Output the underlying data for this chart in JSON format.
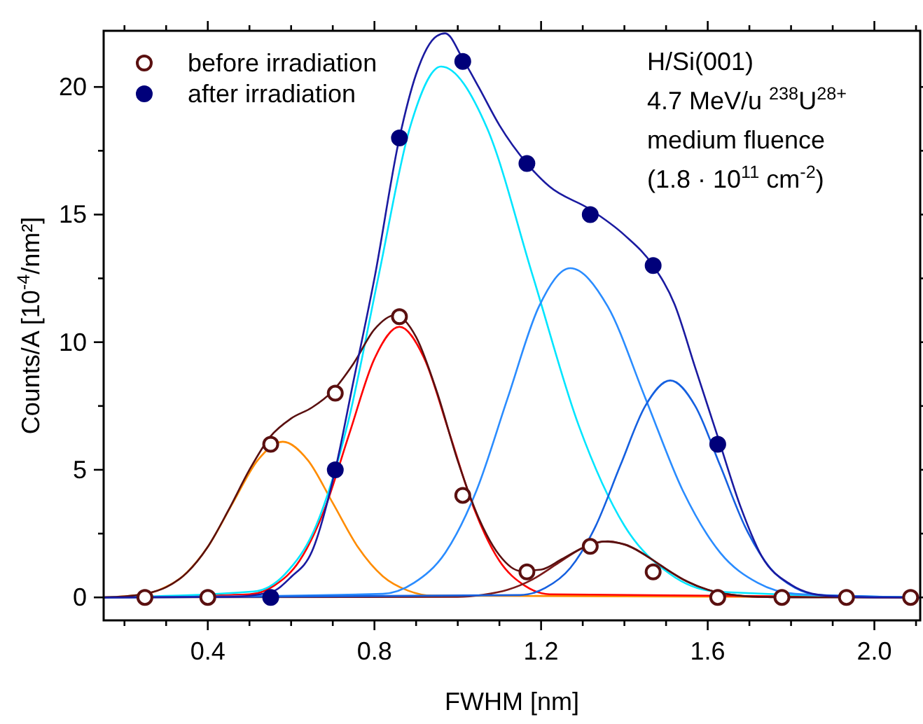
{
  "chart_data": {
    "type": "line",
    "xlabel": "FWHM [nm]",
    "ylabel": "Counts/A [10$^{-4}$/nm²]",
    "xlim": [
      0.15,
      2.11
    ],
    "ylim": [
      -0.9,
      22.2
    ],
    "xticks": [
      {
        "value": 0.2,
        "label": null
      },
      {
        "value": 0.3,
        "label": null
      },
      0.4,
      {
        "value": 0.5,
        "label": null
      },
      {
        "value": 0.6,
        "label": null
      },
      {
        "value": 0.7,
        "label": null
      },
      0.8,
      {
        "value": 0.9,
        "label": null
      },
      {
        "value": 1.0,
        "label": null
      },
      {
        "value": 1.1,
        "label": null
      },
      1.2,
      {
        "value": 1.3,
        "label": null
      },
      {
        "value": 1.4,
        "label": null
      },
      {
        "value": 1.5,
        "label": null
      },
      1.6,
      {
        "value": 1.7,
        "label": null
      },
      {
        "value": 1.8,
        "label": null
      },
      {
        "value": 1.9,
        "label": null
      },
      {
        "value": 2,
        "label": "2.0"
      },
      {
        "value": 2.1,
        "label": null
      }
    ],
    "yticks": [
      0,
      {
        "value": 2.5,
        "label": null
      },
      5,
      {
        "value": 7.5,
        "label": null
      },
      10,
      {
        "value": 12.5,
        "label": null
      },
      15,
      {
        "value": 17.5,
        "label": null
      },
      20
    ],
    "grid": false,
    "legend": "top left",
    "annotations": [
      "H/Si(001)",
      "4.7 MeV/u $^{238}$U$^{28+}$",
      "medium fluence",
      "(1.8 · 10$^{11}$ cm$^{-2}$)"
    ],
    "series": [
      {
        "color": "#ff8c00",
        "x": [
          0.15,
          0.22,
          0.28,
          0.34,
          0.4,
          0.46,
          0.52,
          0.58,
          0.64,
          0.7,
          0.76,
          0.82,
          0.88,
          0.94,
          2.11
        ],
        "values": [
          0,
          0.07,
          0.27,
          0.83,
          1.98,
          3.7,
          5.38,
          6.1,
          5.38,
          3.7,
          1.98,
          0.83,
          0.27,
          0.07,
          0
        ]
      },
      {
        "color": "#ff0000",
        "x": [
          0.15,
          0.5,
          0.56,
          0.62,
          0.68,
          0.74,
          0.8,
          0.86,
          0.92,
          0.98,
          1.04,
          1.1,
          1.16,
          1.22,
          2.11
        ],
        "values": [
          0,
          0.12,
          0.47,
          1.43,
          3.44,
          6.43,
          9.35,
          10.6,
          9.35,
          6.43,
          3.44,
          1.43,
          0.47,
          0.12,
          0
        ]
      },
      {
        "color": "#7a1a1a",
        "x": [
          0.15,
          1.0,
          1.06,
          1.12,
          1.18,
          1.24,
          1.3,
          1.36,
          1.42,
          1.48,
          1.54,
          1.6,
          1.66,
          1.72,
          2.11
        ],
        "values": [
          0,
          0.02,
          0.1,
          0.3,
          0.71,
          1.33,
          1.94,
          2.2,
          1.94,
          1.33,
          0.71,
          0.3,
          0.1,
          0.02,
          0
        ]
      },
      {
        "color": "#00e5ff",
        "x": [
          0.15,
          0.51,
          0.585,
          0.66,
          0.735,
          0.81,
          0.885,
          0.96,
          1.07,
          1.18,
          1.29,
          1.4,
          1.51,
          1.62,
          2.11
        ],
        "values": [
          0,
          0.23,
          0.91,
          2.81,
          6.75,
          12.6,
          18.4,
          20.8,
          18.4,
          12.6,
          6.75,
          2.81,
          0.91,
          0.23,
          0
        ]
      },
      {
        "color": "#2a8cff",
        "x": [
          0.15,
          0.82,
          0.895,
          0.97,
          1.045,
          1.12,
          1.195,
          1.27,
          1.36,
          1.45,
          1.54,
          1.63,
          1.72,
          1.81,
          2.11
        ],
        "values": [
          0,
          0.14,
          0.57,
          1.75,
          4.19,
          7.82,
          11.4,
          12.9,
          11.4,
          7.82,
          4.19,
          1.75,
          0.57,
          0.14,
          0
        ]
      },
      {
        "color": "#1560e0",
        "x": [
          0.15,
          1.15,
          1.21,
          1.27,
          1.33,
          1.39,
          1.45,
          1.51,
          1.57,
          1.63,
          1.69,
          1.75,
          1.81,
          1.87,
          2.11
        ],
        "values": [
          0,
          0.09,
          0.37,
          1.15,
          2.76,
          5.16,
          7.5,
          8.5,
          7.5,
          5.16,
          2.76,
          1.15,
          0.37,
          0.09,
          0
        ]
      },
      {
        "color": "#5a1010",
        "x": [
          0.15,
          0.2,
          0.25,
          0.3,
          0.35,
          0.4,
          0.45,
          0.5,
          0.55,
          0.6,
          0.65,
          0.7,
          0.75,
          0.8,
          0.85,
          0.9,
          0.95,
          1.0,
          1.05,
          1.1,
          1.15,
          1.2,
          1.25,
          1.3,
          1.35,
          1.4,
          1.45,
          1.5,
          1.55,
          1.6,
          1.65,
          1.7,
          1.75,
          1.8,
          2.11
        ],
        "values": [
          0.01,
          0.04,
          0.14,
          0.4,
          0.97,
          1.98,
          3.43,
          5.0,
          6.3,
          7.01,
          7.44,
          8.09,
          9.17,
          10.5,
          11.06,
          10.2,
          8.05,
          5.35,
          3.12,
          1.65,
          1.04,
          1.09,
          1.5,
          1.94,
          2.19,
          2.08,
          1.66,
          1.11,
          0.63,
          0.3,
          0.12,
          0.04,
          0.01,
          0,
          0
        ]
      },
      {
        "color": "#1a1aa0",
        "x": [
          0.15,
          0.45,
          0.55,
          0.6,
          0.65,
          0.706,
          0.75,
          0.8,
          0.86,
          0.9,
          0.95,
          0.97,
          1.012,
          1.05,
          1.1,
          1.166,
          1.22,
          1.318,
          1.4,
          1.469,
          1.52,
          1.57,
          1.624,
          1.68,
          1.73,
          1.8,
          1.85,
          1.9,
          2.0,
          2.11
        ],
        "values": [
          0,
          0.02,
          0.2,
          0.8,
          1.8,
          5,
          8.5,
          12.5,
          18,
          20.5,
          22.0,
          22.1,
          21.1,
          20.0,
          18.5,
          17,
          16.1,
          15.2,
          14.2,
          13,
          11.5,
          9,
          6.3,
          3.5,
          1.6,
          0.5,
          0.15,
          0.05,
          0,
          0
        ]
      },
      {
        "type": "scatter",
        "name": "before irradiation",
        "color": "#5a1010",
        "marker": "circle",
        "x": [
          0.249,
          0.4,
          0.551,
          0.706,
          0.86,
          1.012,
          1.166,
          1.318,
          1.469,
          1.624,
          1.778,
          1.933,
          2.087
        ],
        "values": [
          0,
          0,
          6,
          8,
          11,
          4,
          1,
          2,
          1,
          0,
          0,
          0,
          0
        ]
      },
      {
        "type": "scatter",
        "name": "after irradiation",
        "color": "#00007a",
        "marker": "circle",
        "x": [
          0.551,
          0.706,
          0.86,
          1.012,
          1.166,
          1.318,
          1.469,
          1.624
        ],
        "values": [
          0,
          5,
          18,
          21,
          17,
          15,
          13,
          6
        ]
      }
    ]
  }
}
